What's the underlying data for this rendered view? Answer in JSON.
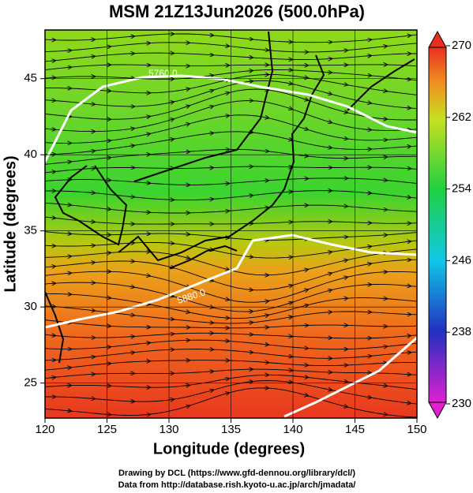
{
  "chart_data": {
    "type": "streamline",
    "title": "MSM 21Z13Jun2026 (500.0hPa)",
    "x_label": "Longitude (degrees)",
    "y_label": "Latitude  (degrees)",
    "xlim": [
      120,
      150
    ],
    "xticks": [
      120,
      125,
      130,
      135,
      140,
      145,
      150
    ],
    "ylim": [
      22.7,
      48.2
    ],
    "yticks": [
      25,
      30,
      35,
      40,
      45
    ],
    "grid": true,
    "colorbar": {
      "lim": [
        230,
        270
      ],
      "ticks": [
        230,
        238,
        246,
        254,
        262,
        270
      ]
    },
    "contour_labels": [
      "5760.0",
      "5880.0"
    ],
    "credits": [
      "Drawing by DCL (https://www.gfd-dennou.org/library/dcl/)",
      "Data from http://database.rish.kyoto-u.ac.jp/arch/jmadata/"
    ]
  }
}
